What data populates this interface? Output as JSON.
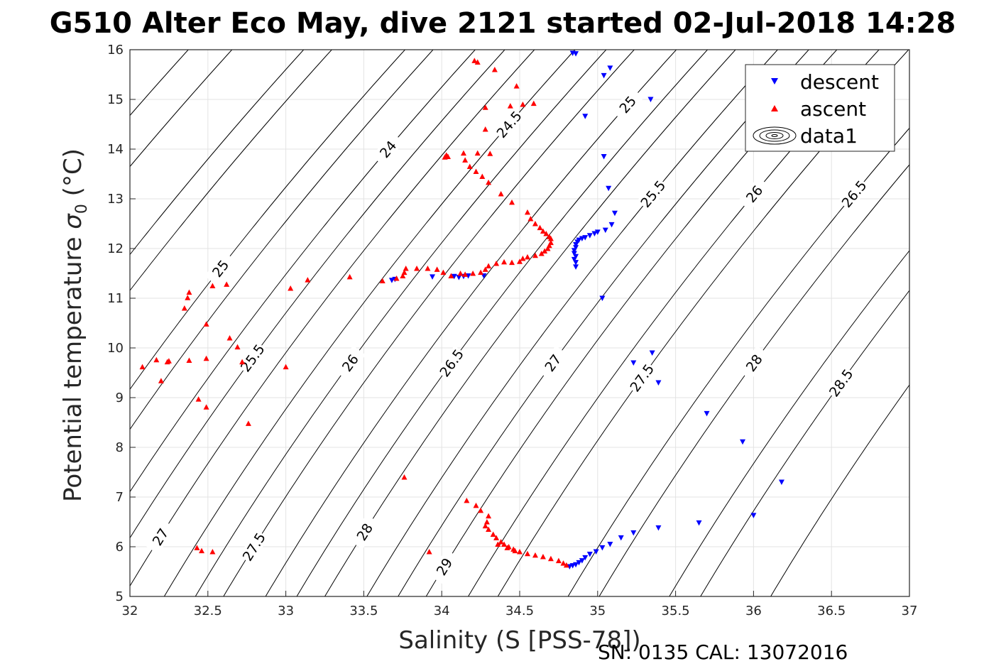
{
  "chart_data": {
    "type": "scatter",
    "title": "G510 Alter Eco May, dive 2121 started 02-Jul-2018 14:28",
    "xlabel": "Salinity (S [PSS-78])",
    "ylabel_main": "Potential temperature ",
    "ylabel_sigma": "σ",
    "ylabel_sub": "0",
    "ylabel_unit": " (°C)",
    "xlim": [
      32,
      37
    ],
    "ylim": [
      5,
      16
    ],
    "xticks": [
      32,
      32.5,
      33,
      33.5,
      34,
      34.5,
      35,
      35.5,
      36,
      36.5,
      37
    ],
    "xtick_labels": [
      "32",
      "32.5",
      "33",
      "33.5",
      "34",
      "34.5",
      "35",
      "35.5",
      "36",
      "36.5",
      "37"
    ],
    "yticks": [
      5,
      6,
      7,
      8,
      9,
      10,
      11,
      12,
      13,
      14,
      15,
      16
    ],
    "ytick_labels": [
      "5",
      "6",
      "7",
      "8",
      "9",
      "10",
      "11",
      "12",
      "13",
      "14",
      "15",
      "16"
    ],
    "grid": true,
    "legend_position": "top-right",
    "footer": "SN: 0135  CAL: 13072016",
    "contours": {
      "note_levels": [
        24,
        24.5,
        25,
        25.5,
        26,
        26.5,
        27,
        27.5,
        28,
        28.5,
        29
      ],
      "lines": [
        {
          "s0": 31.58,
          "slope": 0.1,
          "labels": [
            {
              "text": "24",
              "t": 14
            }
          ]
        },
        {
          "s0": 32.22,
          "slope": 0.1,
          "labels": [
            {
              "text": "24.5",
              "t": 14.5
            }
          ]
        },
        {
          "s0": 32.87,
          "slope": 0.1,
          "labels": [
            {
              "text": "25",
              "t": 14.9
            }
          ]
        },
        {
          "s0": 33.52,
          "slope": 0.1,
          "labels": [
            {
              "text": "25.5",
              "t": 13.1
            }
          ]
        },
        {
          "s0": 34.17,
          "slope": 0.1,
          "labels": [
            {
              "text": "26",
              "t": 13.1
            }
          ]
        },
        {
          "s0": 34.81,
          "slope": 0.1,
          "labels": [
            {
              "text": "26.5",
              "t": 13.1
            }
          ]
        },
        {
          "s0": 35.46,
          "slope": 0.1,
          "labels": [
            {
              "text": "27",
              "t": 13.1
            }
          ]
        },
        {
          "s0": 36.11,
          "slope": 0.1,
          "labels": [
            {
              "text": "27.5",
              "t": 12.9
            }
          ]
        },
        {
          "s0": 30.48,
          "slope": 0.1,
          "labels": [
            {
              "text": "24.5",
              "t": 11.4
            }
          ]
        },
        {
          "s0": 31.13,
          "slope": 0.1,
          "labels": [
            {
              "text": "25",
              "t": 11.6
            }
          ]
        },
        {
          "s0": 31.77,
          "slope": 0.1,
          "labels": [
            {
              "text": "25.5",
              "t": 9.8
            }
          ]
        },
        {
          "s0": 32.42,
          "slope": 0.1,
          "labels": [
            {
              "text": "26",
              "t": 9.7
            }
          ]
        },
        {
          "s0": 33.07,
          "slope": 0.1,
          "labels": [
            {
              "text": "26.5",
              "t": 9.7
            }
          ]
        },
        {
          "s0": 33.72,
          "slope": 0.1,
          "labels": [
            {
              "text": "27",
              "t": 9.7
            }
          ]
        },
        {
          "s0": 34.36,
          "slope": 0.1,
          "labels": [
            {
              "text": "27.5",
              "t": 9.4
            }
          ]
        },
        {
          "s0": 35.01,
          "slope": 0.1,
          "labels": [
            {
              "text": "28",
              "t": 9.7
            }
          ]
        },
        {
          "s0": 35.66,
          "slope": 0.1,
          "labels": [
            {
              "text": "28.5",
              "t": 9.3
            }
          ]
        },
        {
          "s0": 29.74,
          "slope": 0.1,
          "labels": [
            {
              "text": "25",
              "t": 8.0
            }
          ]
        },
        {
          "s0": 30.02,
          "slope": 0.1,
          "labels": [
            {
              "text": "25.5",
              "t": 6.2
            }
          ]
        },
        {
          "s0": 30.66,
          "slope": 0.1,
          "labels": [
            {
              "text": "26",
              "t": 6.2
            }
          ]
        },
        {
          "s0": 31.31,
          "slope": 0.1,
          "labels": [
            {
              "text": "26.5",
              "t": 6.3
            }
          ]
        },
        {
          "s0": 31.96,
          "slope": 0.1,
          "labels": [
            {
              "text": "27",
              "t": 6.2
            }
          ]
        },
        {
          "s0": 32.6,
          "slope": 0.1,
          "labels": [
            {
              "text": "27.5",
              "t": 6.0
            }
          ]
        },
        {
          "s0": 33.25,
          "slope": 0.1,
          "labels": [
            {
              "text": "28",
              "t": 6.3
            }
          ]
        },
        {
          "s0": 33.9,
          "slope": 0.1,
          "labels": [
            {
              "text": "29",
              "t": 5.6
            }
          ]
        }
      ]
    },
    "series": [
      {
        "name": "descent",
        "color": "#0000ff",
        "marker": "triangle-down",
        "points": [
          [
            34.84,
            15.93
          ],
          [
            34.86,
            15.92
          ],
          [
            35.08,
            15.63
          ],
          [
            35.04,
            15.48
          ],
          [
            35.34,
            15.0
          ],
          [
            34.92,
            14.66
          ],
          [
            35.04,
            13.85
          ],
          [
            35.07,
            13.21
          ],
          [
            35.11,
            12.71
          ],
          [
            35.09,
            12.48
          ],
          [
            35.05,
            12.37
          ],
          [
            34.98,
            12.3
          ],
          [
            35.0,
            12.33
          ],
          [
            34.95,
            12.26
          ],
          [
            34.92,
            12.22
          ],
          [
            34.9,
            12.2
          ],
          [
            34.88,
            12.17
          ],
          [
            34.87,
            12.13
          ],
          [
            34.86,
            12.08
          ],
          [
            34.86,
            12.02
          ],
          [
            34.85,
            11.96
          ],
          [
            34.85,
            11.9
          ],
          [
            34.86,
            11.84
          ],
          [
            34.85,
            11.78
          ],
          [
            34.86,
            11.72
          ],
          [
            34.86,
            11.63
          ],
          [
            35.03,
            11.0
          ],
          [
            33.68,
            11.36
          ],
          [
            33.7,
            11.38
          ],
          [
            33.94,
            11.43
          ],
          [
            34.08,
            11.44
          ],
          [
            34.11,
            11.42
          ],
          [
            34.14,
            11.44
          ],
          [
            34.17,
            11.45
          ],
          [
            34.27,
            11.45
          ],
          [
            35.35,
            9.9
          ],
          [
            35.23,
            9.7
          ],
          [
            35.39,
            9.3
          ],
          [
            35.7,
            8.68
          ],
          [
            35.93,
            8.11
          ],
          [
            36.18,
            7.3
          ],
          [
            36.0,
            6.63
          ],
          [
            35.65,
            6.48
          ],
          [
            35.39,
            6.38
          ],
          [
            35.23,
            6.28
          ],
          [
            35.15,
            6.18
          ],
          [
            35.08,
            6.05
          ],
          [
            35.03,
            5.98
          ],
          [
            34.99,
            5.9
          ],
          [
            34.95,
            5.85
          ],
          [
            34.92,
            5.78
          ],
          [
            34.9,
            5.72
          ],
          [
            34.88,
            5.68
          ],
          [
            34.86,
            5.64
          ],
          [
            34.84,
            5.62
          ],
          [
            34.82,
            5.6
          ]
        ]
      },
      {
        "name": "ascent",
        "color": "#ff0000",
        "marker": "triangle-up",
        "points": [
          [
            34.21,
            15.78
          ],
          [
            34.23,
            15.75
          ],
          [
            34.34,
            15.6
          ],
          [
            34.48,
            15.27
          ],
          [
            34.28,
            14.84
          ],
          [
            34.44,
            14.87
          ],
          [
            34.52,
            14.9
          ],
          [
            34.59,
            14.92
          ],
          [
            34.28,
            14.4
          ],
          [
            34.31,
            13.91
          ],
          [
            34.23,
            13.92
          ],
          [
            34.03,
            13.88
          ],
          [
            34.04,
            13.85
          ],
          [
            34.02,
            13.84
          ],
          [
            34.14,
            13.92
          ],
          [
            34.15,
            13.78
          ],
          [
            34.18,
            13.65
          ],
          [
            34.22,
            13.55
          ],
          [
            34.26,
            13.45
          ],
          [
            34.3,
            13.33
          ],
          [
            34.38,
            13.1
          ],
          [
            34.45,
            12.93
          ],
          [
            34.55,
            12.73
          ],
          [
            34.57,
            12.6
          ],
          [
            34.6,
            12.5
          ],
          [
            34.63,
            12.42
          ],
          [
            34.65,
            12.35
          ],
          [
            34.67,
            12.3
          ],
          [
            34.69,
            12.24
          ],
          [
            34.7,
            12.2
          ],
          [
            34.7,
            12.12
          ],
          [
            34.69,
            12.06
          ],
          [
            34.68,
            12.0
          ],
          [
            34.66,
            11.95
          ],
          [
            34.64,
            11.9
          ],
          [
            34.6,
            11.86
          ],
          [
            34.55,
            11.83
          ],
          [
            34.52,
            11.8
          ],
          [
            34.5,
            11.74
          ],
          [
            34.45,
            11.72
          ],
          [
            34.4,
            11.73
          ],
          [
            34.35,
            11.7
          ],
          [
            34.3,
            11.65
          ],
          [
            34.28,
            11.58
          ],
          [
            34.25,
            11.52
          ],
          [
            34.2,
            11.5
          ],
          [
            34.15,
            11.48
          ],
          [
            34.12,
            11.5
          ],
          [
            34.06,
            11.45
          ],
          [
            34.01,
            11.52
          ],
          [
            33.97,
            11.58
          ],
          [
            33.91,
            11.6
          ],
          [
            33.84,
            11.6
          ],
          [
            33.77,
            11.6
          ],
          [
            33.76,
            11.52
          ],
          [
            33.75,
            11.45
          ],
          [
            33.71,
            11.4
          ],
          [
            33.62,
            11.35
          ],
          [
            33.41,
            11.43
          ],
          [
            33.14,
            11.37
          ],
          [
            33.03,
            11.2
          ],
          [
            32.53,
            11.25
          ],
          [
            32.62,
            11.28
          ],
          [
            32.38,
            11.12
          ],
          [
            32.37,
            11.01
          ],
          [
            32.35,
            10.8
          ],
          [
            32.49,
            10.48
          ],
          [
            32.64,
            10.2
          ],
          [
            32.69,
            10.02
          ],
          [
            32.72,
            9.72
          ],
          [
            32.49,
            9.79
          ],
          [
            32.38,
            9.75
          ],
          [
            32.25,
            9.74
          ],
          [
            32.24,
            9.72
          ],
          [
            32.17,
            9.76
          ],
          [
            32.2,
            9.34
          ],
          [
            32.08,
            9.62
          ],
          [
            33.0,
            9.62
          ],
          [
            32.44,
            8.97
          ],
          [
            32.49,
            8.81
          ],
          [
            32.76,
            8.48
          ],
          [
            33.76,
            7.4
          ],
          [
            34.16,
            6.93
          ],
          [
            34.22,
            6.83
          ],
          [
            34.25,
            6.73
          ],
          [
            34.3,
            6.62
          ],
          [
            34.29,
            6.5
          ],
          [
            34.28,
            6.42
          ],
          [
            34.3,
            6.35
          ],
          [
            34.33,
            6.25
          ],
          [
            34.35,
            6.18
          ],
          [
            34.38,
            6.1
          ],
          [
            34.4,
            6.05
          ],
          [
            34.43,
            6.0
          ],
          [
            34.46,
            5.95
          ],
          [
            34.5,
            5.9
          ],
          [
            34.55,
            5.86
          ],
          [
            34.6,
            5.83
          ],
          [
            34.65,
            5.8
          ],
          [
            34.7,
            5.76
          ],
          [
            34.75,
            5.72
          ],
          [
            34.78,
            5.67
          ],
          [
            34.8,
            5.63
          ],
          [
            34.36,
            6.05
          ],
          [
            34.42,
            5.98
          ],
          [
            34.47,
            5.92
          ],
          [
            33.92,
            5.9
          ],
          [
            32.53,
            5.9
          ],
          [
            32.46,
            5.92
          ],
          [
            32.43,
            5.98
          ]
        ]
      }
    ],
    "extra_legend_entry": {
      "name": "data1",
      "marker": "contour-ellipses"
    }
  }
}
